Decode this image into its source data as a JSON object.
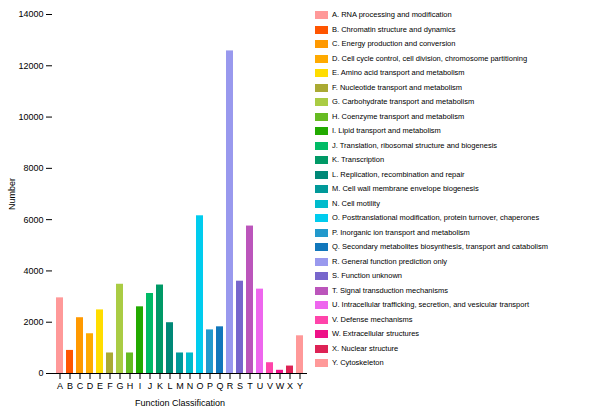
{
  "chart_data": {
    "type": "bar",
    "categories": [
      "A",
      "B",
      "C",
      "D",
      "E",
      "F",
      "G",
      "H",
      "I",
      "J",
      "K",
      "L",
      "M",
      "N",
      "O",
      "P",
      "Q",
      "R",
      "S",
      "T",
      "U",
      "V",
      "W",
      "X",
      "Y"
    ],
    "values": [
      2950,
      900,
      2175,
      1550,
      2480,
      800,
      3480,
      800,
      2600,
      3120,
      3450,
      1980,
      800,
      800,
      6150,
      1700,
      1820,
      12580,
      3600,
      5750,
      3290,
      420,
      125,
      290,
      1470
    ],
    "colors": [
      "#FF9999",
      "#FF5500",
      "#FF9900",
      "#FFAA00",
      "#FFDD00",
      "#AAAA33",
      "#AACC44",
      "#66BB22",
      "#22AA00",
      "#00BB66",
      "#009966",
      "#008877",
      "#009999",
      "#00BBCC",
      "#00CCEE",
      "#2299CC",
      "#1177BB",
      "#9999EE",
      "#7766CC",
      "#BB55BB",
      "#EE66EE",
      "#FF44AA",
      "#EE1188",
      "#DD2255",
      "#FF9999"
    ],
    "legend_labels": [
      "A. RNA processing and modification",
      "B. Chromatin structure and dynamics",
      "C. Energy production and conversion",
      "D. Cell cycle control, cell division, chromosome partitioning",
      "E. Amino acid transport and metabolism",
      "F. Nucleotide transport and metabolism",
      "G. Carbohydrate transport and metabolism",
      "H. Coenzyme transport and metabolism",
      "I. Lipid transport and metabolism",
      "J. Translation, ribosomal structure and biogenesis",
      "K. Transcription",
      "L. Replication, recombination and repair",
      "M. Cell wall membrane envelope biogenesis",
      "N. Cell motility",
      "O. Posttranslational modification, protein turnover, chaperones",
      "P. Inorganic ion transport and metabolism",
      "Q. Secondary metabolites biosynthesis, transport and catabolism",
      "R. General function prediction only",
      "S. Function unknown",
      "T. Signal transduction mechanisms",
      "U. Intracellular trafficking, secretion, and vesicular transport",
      "V. Defense mechanisms",
      "W. Extracellular structures",
      "X. Nuclear structure",
      "Y. Cytoskeleton"
    ],
    "legend": "right",
    "xlabel": "Function Classification",
    "ylabel": "Number",
    "ylim": [
      0,
      14000
    ],
    "yticks": [
      0,
      2000,
      4000,
      6000,
      8000,
      10000,
      12000,
      14000
    ],
    "grid": false
  }
}
